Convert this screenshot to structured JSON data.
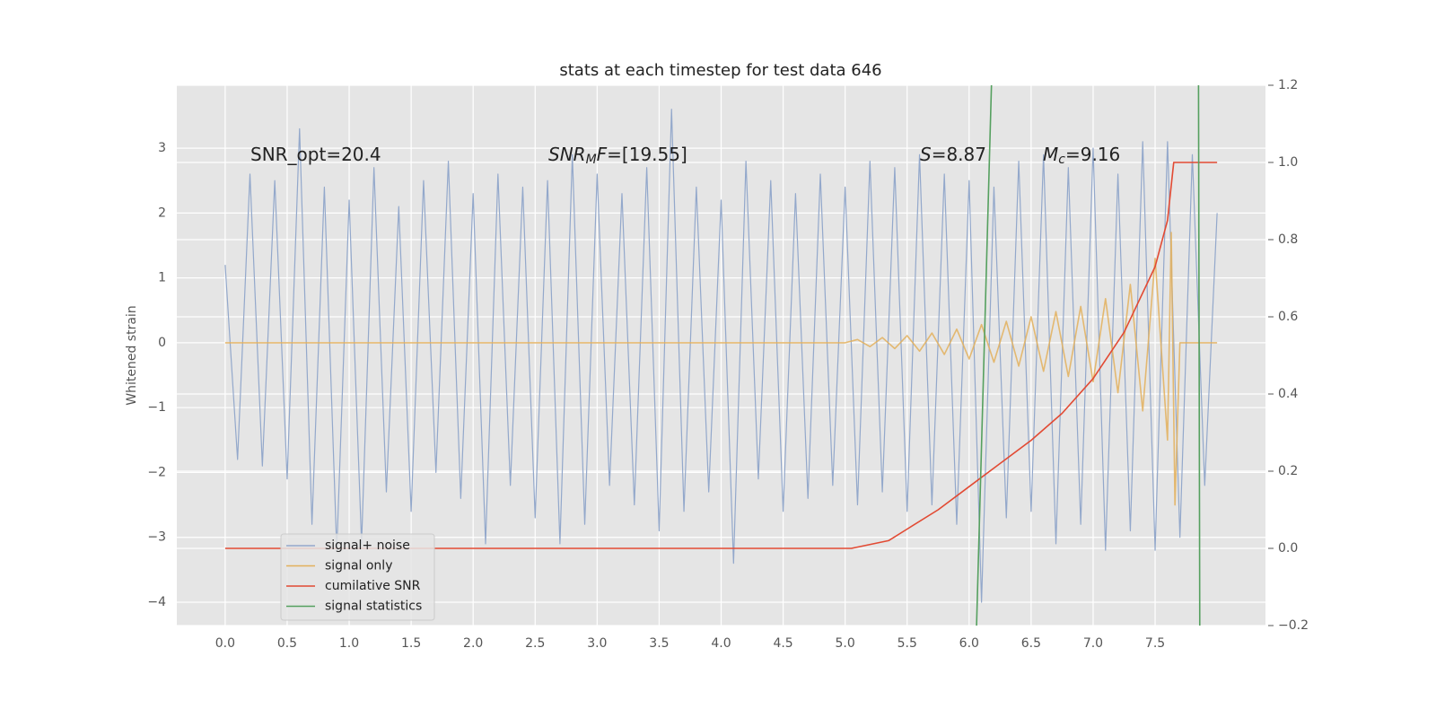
{
  "chart_data": {
    "type": "line",
    "title": "stats at each timestep for test data 646",
    "y_label": "Whitened strain",
    "xlim": [
      -0.39,
      8.39
    ],
    "ylim": [
      -4.36,
      3.97
    ],
    "y2lim": [
      -0.2,
      1.2
    ],
    "xticks": [
      {
        "value": 0,
        "label": "0.0"
      },
      0.5,
      {
        "value": 1,
        "label": "1.0"
      },
      1.5,
      {
        "value": 2,
        "label": "2.0"
      },
      2.5,
      {
        "value": 3,
        "label": "3.0"
      },
      3.5,
      {
        "value": 4,
        "label": "4.0"
      },
      4.5,
      {
        "value": 5,
        "label": "5.0"
      },
      5.5,
      {
        "value": 6,
        "label": "6.0"
      },
      6.5,
      {
        "value": 7,
        "label": "7.0"
      },
      7.5
    ],
    "yticks": [
      {
        "value": -4,
        "label": "−4"
      },
      {
        "value": -3,
        "label": "−3"
      },
      {
        "value": -2,
        "label": "−2"
      },
      {
        "value": -1,
        "label": "−1"
      },
      0,
      1,
      2,
      3
    ],
    "y2ticks": [
      {
        "value": -0.2,
        "label": "−0.2"
      },
      {
        "value": 0,
        "label": "0.0"
      },
      0.2,
      0.4,
      0.6,
      0.8,
      {
        "value": 1,
        "label": "1.0"
      },
      1.2
    ],
    "grid": true,
    "legend": "lower left",
    "annotations": [
      {
        "parts": [
          {
            "text": "SNR_opt=20.4",
            "italic": false,
            "sub": false
          }
        ]
      },
      {
        "parts": [
          {
            "text": "SNR",
            "italic": true,
            "sub": false
          },
          {
            "text": "M",
            "italic": true,
            "sub": true
          },
          {
            "text": "F",
            "italic": true,
            "sub": false
          },
          {
            "text": "=[19.55]",
            "italic": false,
            "sub": false
          }
        ]
      },
      {
        "parts": [
          {
            "text": "S",
            "italic": true,
            "sub": false
          },
          {
            "text": "=8.87",
            "italic": false,
            "sub": false
          }
        ]
      },
      {
        "parts": [
          {
            "text": "M",
            "italic": true,
            "sub": false
          },
          {
            "text": "c",
            "italic": true,
            "sub": true
          },
          {
            "text": "=9.16",
            "italic": false,
            "sub": false
          }
        ]
      }
    ],
    "series": [
      {
        "name": "signal+ noise",
        "color": "#93a8cb",
        "x": [
          0,
          0.1,
          0.2,
          0.3,
          0.4,
          0.5,
          0.6,
          0.7,
          0.8,
          0.9,
          1.0,
          1.1,
          1.2,
          1.3,
          1.4,
          1.5,
          1.6,
          1.7,
          1.8,
          1.9,
          2.0,
          2.1,
          2.2,
          2.3,
          2.4,
          2.5,
          2.6,
          2.7,
          2.8,
          2.9,
          3.0,
          3.1,
          3.2,
          3.3,
          3.4,
          3.5,
          3.6,
          3.7,
          3.8,
          3.9,
          4.0,
          4.1,
          4.2,
          4.3,
          4.4,
          4.5,
          4.6,
          4.7,
          4.8,
          4.9,
          5.0,
          5.1,
          5.2,
          5.3,
          5.4,
          5.5,
          5.6,
          5.7,
          5.8,
          5.9,
          6.0,
          6.1,
          6.2,
          6.3,
          6.4,
          6.5,
          6.6,
          6.7,
          6.8,
          6.9,
          7.0,
          7.1,
          7.2,
          7.3,
          7.4,
          7.5,
          7.6,
          7.7,
          7.8,
          7.9,
          8.0
        ],
        "values": [
          1.2,
          -1.8,
          2.6,
          -1.9,
          2.5,
          -2.1,
          3.3,
          -2.8,
          2.4,
          -3.2,
          2.2,
          -3.1,
          2.7,
          -2.3,
          2.1,
          -2.6,
          2.5,
          -2.0,
          2.8,
          -2.4,
          2.3,
          -3.1,
          2.6,
          -2.2,
          2.4,
          -2.7,
          2.5,
          -3.1,
          2.9,
          -2.8,
          2.6,
          -2.2,
          2.3,
          -2.5,
          2.7,
          -2.9,
          3.6,
          -2.6,
          2.4,
          -2.3,
          2.2,
          -3.4,
          2.8,
          -2.1,
          2.5,
          -2.6,
          2.3,
          -2.4,
          2.6,
          -2.2,
          2.4,
          -2.5,
          2.8,
          -2.3,
          2.7,
          -2.6,
          2.9,
          -2.5,
          2.6,
          -2.8,
          2.5,
          -4.0,
          2.4,
          -2.7,
          2.8,
          -2.6,
          2.9,
          -3.1,
          2.7,
          -2.8,
          3.0,
          -3.2,
          2.6,
          -2.9,
          3.1,
          -3.2,
          3.1,
          -3.0,
          2.9,
          -2.2,
          2.0
        ]
      },
      {
        "name": "signal only",
        "color": "#e3b05c",
        "x": [
          0,
          5.0,
          5.1,
          5.2,
          5.3,
          5.4,
          5.5,
          5.6,
          5.7,
          5.8,
          5.9,
          6.0,
          6.1,
          6.2,
          6.3,
          6.4,
          6.5,
          6.6,
          6.7,
          6.8,
          6.9,
          7.0,
          7.1,
          7.2,
          7.3,
          7.4,
          7.5,
          7.6,
          7.63,
          7.66,
          7.7,
          8.0
        ],
        "values": [
          0,
          0,
          0.05,
          -0.06,
          0.08,
          -0.09,
          0.11,
          -0.13,
          0.15,
          -0.18,
          0.21,
          -0.25,
          0.28,
          -0.3,
          0.33,
          -0.36,
          0.4,
          -0.44,
          0.48,
          -0.52,
          0.56,
          -0.6,
          0.68,
          -0.77,
          0.9,
          -1.05,
          1.3,
          -1.5,
          1.7,
          -2.5,
          0,
          0
        ]
      },
      {
        "name": "cumilative SNR",
        "color": "#e24a33",
        "axis": "y2",
        "x": [
          0,
          5.05,
          5.35,
          5.5,
          5.75,
          6.0,
          6.25,
          6.5,
          6.75,
          7.0,
          7.25,
          7.5,
          7.6,
          7.65,
          8.0
        ],
        "values": [
          0,
          0,
          0.02,
          0.05,
          0.1,
          0.16,
          0.22,
          0.28,
          0.35,
          0.44,
          0.56,
          0.73,
          0.85,
          1.0,
          1.0
        ]
      },
      {
        "name": "signal statistics",
        "color": "#55a05f",
        "axis": "y2",
        "x": [
          6.06,
          6.18,
          7.0,
          7.86,
          7.85
        ],
        "values": [
          -0.2,
          1.2,
          null,
          -0.2,
          1.2
        ]
      }
    ]
  }
}
